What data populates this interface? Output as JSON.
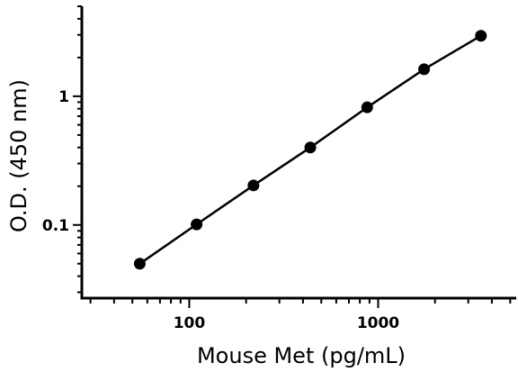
{
  "chart_data": {
    "type": "scatter",
    "title": "",
    "xlabel": "Mouse Met (pg/mL)",
    "ylabel": "O.D. (450 nm)",
    "xscale": "log",
    "yscale": "log",
    "xlim": [
      27,
      5500
    ],
    "ylim": [
      0.027,
      5.0
    ],
    "xticks": [
      100,
      1000
    ],
    "xtick_labels": [
      "100",
      "1000"
    ],
    "yticks": [
      0.1,
      1
    ],
    "ytick_labels": [
      "0.1",
      "1"
    ],
    "grid": false,
    "legend": "none",
    "series": [
      {
        "x": [
          54.7,
          109.4,
          218.8,
          437.5,
          875,
          1750,
          3500
        ],
        "y": [
          0.05,
          0.101,
          0.203,
          0.4,
          0.82,
          1.62,
          2.95
        ]
      }
    ],
    "colors": {
      "line": "#000000",
      "marker": "#000000"
    }
  }
}
